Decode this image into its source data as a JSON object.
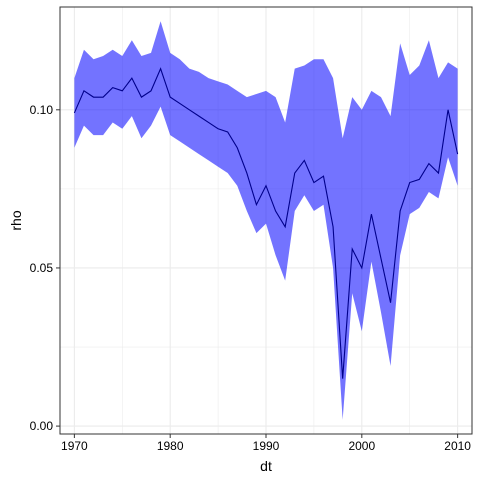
{
  "chart_data": {
    "type": "area",
    "title": "",
    "xlabel": "dt",
    "ylabel": "rho",
    "xlim": [
      1968.5,
      2011.5
    ],
    "ylim": [
      -0.0025,
      0.1325
    ],
    "x_ticks": [
      1970,
      1980,
      1990,
      2000,
      2010
    ],
    "x_tick_labels": [
      "1970",
      "1980",
      "1990",
      "2000",
      "2010"
    ],
    "y_ticks": [
      0.0,
      0.05,
      0.1
    ],
    "y_tick_labels": [
      "0.00",
      "0.05",
      "0.10"
    ],
    "grid": true,
    "colors": {
      "ribbon": "#0000ff",
      "line": "#00008b",
      "panel_border": "#333333",
      "grid": "#ebebeb"
    },
    "series": [
      {
        "x": [
          1970,
          1971,
          1972,
          1973,
          1974,
          1975,
          1976,
          1977,
          1978,
          1979,
          1980,
          1981,
          1982,
          1983,
          1984,
          1985,
          1986,
          1987,
          1988,
          1989,
          1990,
          1991,
          1992,
          1993,
          1994,
          1995,
          1996,
          1997,
          1998,
          1999,
          2000,
          2001,
          2002,
          2003,
          2004,
          2005,
          2006,
          2007,
          2008,
          2009,
          2010
        ],
        "values": [
          0.099,
          0.106,
          0.104,
          0.104,
          0.107,
          0.106,
          0.11,
          0.104,
          0.106,
          0.113,
          0.104,
          0.102,
          0.1,
          0.098,
          0.096,
          0.094,
          0.093,
          0.088,
          0.08,
          0.07,
          0.076,
          0.068,
          0.063,
          0.08,
          0.084,
          0.077,
          0.079,
          0.063,
          0.015,
          0.056,
          0.05,
          0.067,
          0.053,
          0.039,
          0.068,
          0.077,
          0.078,
          0.083,
          0.08,
          0.1,
          0.086
        ],
        "lower": [
          0.088,
          0.095,
          0.092,
          0.092,
          0.096,
          0.094,
          0.098,
          0.091,
          0.095,
          0.101,
          0.092,
          0.09,
          0.088,
          0.086,
          0.084,
          0.082,
          0.08,
          0.076,
          0.068,
          0.061,
          0.064,
          0.054,
          0.046,
          0.068,
          0.073,
          0.068,
          0.07,
          0.05,
          0.002,
          0.042,
          0.03,
          0.052,
          0.036,
          0.019,
          0.054,
          0.067,
          0.069,
          0.074,
          0.072,
          0.085,
          0.076
        ],
        "upper": [
          0.11,
          0.119,
          0.116,
          0.117,
          0.119,
          0.117,
          0.122,
          0.117,
          0.118,
          0.128,
          0.118,
          0.116,
          0.113,
          0.112,
          0.11,
          0.109,
          0.108,
          0.106,
          0.104,
          0.105,
          0.106,
          0.104,
          0.096,
          0.113,
          0.114,
          0.116,
          0.116,
          0.11,
          0.091,
          0.104,
          0.1,
          0.106,
          0.104,
          0.098,
          0.121,
          0.111,
          0.114,
          0.122,
          0.11,
          0.115,
          0.113
        ]
      }
    ]
  }
}
